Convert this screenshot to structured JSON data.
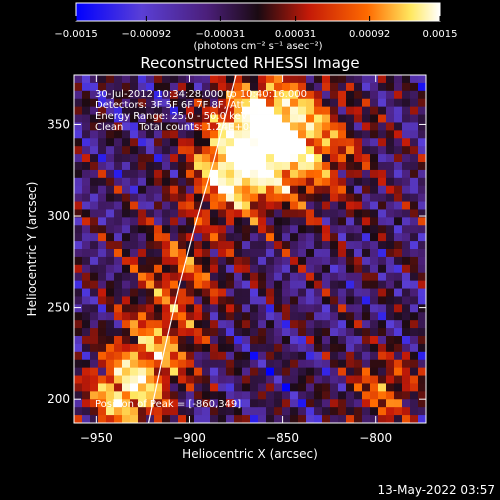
{
  "chart_data": {
    "type": "heatmap",
    "title": "Reconstructed RHESSI Image",
    "xlabel": "Heliocentric X (arcsec)",
    "ylabel": "Heliocentric Y (arcsec)",
    "xlim": [
      -962,
      -773
    ],
    "ylim": [
      187,
      377
    ],
    "x_ticks": [
      {
        "value": -950,
        "label": "−950"
      },
      {
        "value": -900,
        "label": "−900"
      },
      {
        "value": -850,
        "label": "−850"
      },
      {
        "value": -800,
        "label": "−800"
      }
    ],
    "y_ticks": [
      {
        "value": 200,
        "label": "200"
      },
      {
        "value": 250,
        "label": "250"
      },
      {
        "value": 300,
        "label": "300"
      },
      {
        "value": 350,
        "label": "350"
      }
    ],
    "colorbar": {
      "min": -0.0015,
      "max": 0.0015,
      "ticks": [
        {
          "value": -0.0015,
          "label": "−0.0015"
        },
        {
          "value": -0.00092,
          "label": "−0.00092"
        },
        {
          "value": -0.00031,
          "label": "−0.00031"
        },
        {
          "value": 0.00031,
          "label": "0.00031"
        },
        {
          "value": 0.00092,
          "label": "0.00092"
        },
        {
          "value": 0.0015,
          "label": "0.0015"
        }
      ],
      "unit_label": "(photons cm⁻² s⁻¹ asec⁻²)",
      "colors": [
        "#0000ff",
        "#5a3fd6",
        "#4b1f7a",
        "#1a0a12",
        "#c41a08",
        "#ff6a00",
        "#ffe860",
        "#ffffff"
      ]
    },
    "annotations": [
      "30-Jul-2012 10:34:28.000 to 10:40:16.000",
      "Detectors: 3F 5F 6F 7F 8F, Att 1",
      "Energy Range: 25.0 - 50.0 keV",
      "Clean     Total counts: 1.24E+04"
    ],
    "peak_label": "Position of Peak = [-860,349]",
    "peak": [
      -860,
      349
    ],
    "limb_curve": [
      [
        -922,
        187
      ],
      [
        -915,
        220
      ],
      [
        -906,
        260
      ],
      [
        -897,
        295
      ],
      [
        -887,
        330
      ],
      [
        -875,
        377
      ]
    ],
    "bright_sources": [
      {
        "x": -860,
        "y": 349,
        "sigma": 18,
        "amp": 1.0
      },
      {
        "x": -878,
        "y": 322,
        "sigma": 16,
        "amp": 0.8
      },
      {
        "x": -838,
        "y": 335,
        "sigma": 22,
        "amp": 0.55
      },
      {
        "x": -935,
        "y": 202,
        "sigma": 14,
        "amp": 0.85
      },
      {
        "x": -918,
        "y": 228,
        "sigma": 16,
        "amp": 0.6
      },
      {
        "x": -905,
        "y": 270,
        "sigma": 18,
        "amp": 0.45
      },
      {
        "x": -795,
        "y": 205,
        "sigma": 14,
        "amp": 0.5
      }
    ]
  },
  "timestamp": "13-May-2022 03:57"
}
